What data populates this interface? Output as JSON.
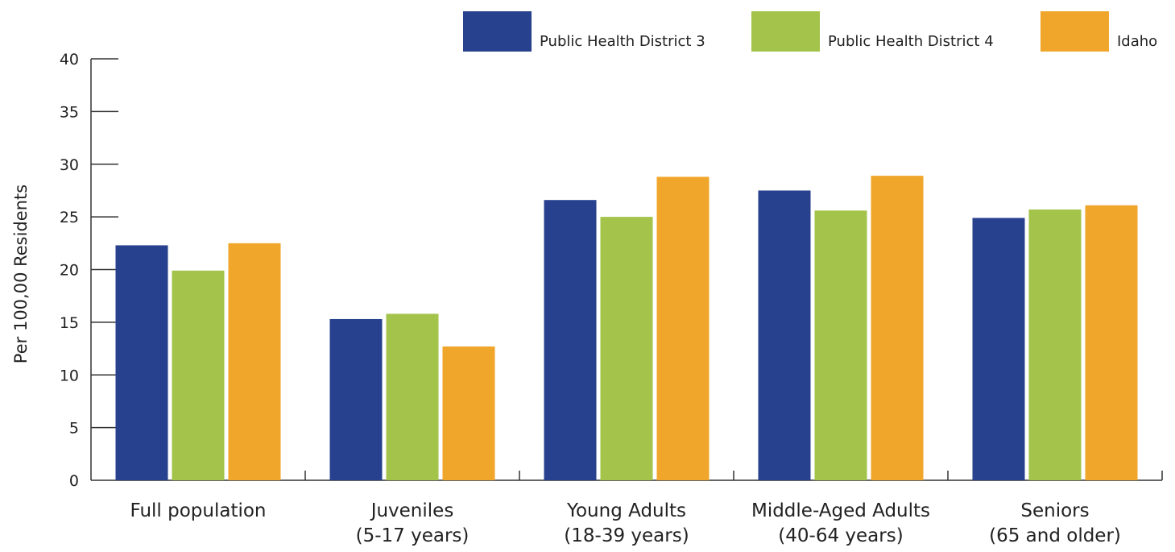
{
  "chart_data": {
    "type": "bar",
    "title": "",
    "xlabel": "",
    "ylabel": "Per 100,00 Residents",
    "ylim": [
      0,
      40
    ],
    "yticks": [
      0,
      5,
      10,
      15,
      20,
      25,
      30,
      35,
      40
    ],
    "grid": false,
    "legend_position": "top-right",
    "categories": [
      [
        "Full population"
      ],
      [
        "Juveniles",
        "(5-17 years)"
      ],
      [
        "Young Adults",
        "(18-39 years)"
      ],
      [
        "Middle-Aged Adults",
        "(40-64 years)"
      ],
      [
        "Seniors",
        "(65 and older)"
      ]
    ],
    "series": [
      {
        "name": "Public Health District 3",
        "color": "#27418e",
        "values": [
          22.3,
          15.3,
          26.6,
          27.5,
          24.9
        ]
      },
      {
        "name": "Public Health District 4",
        "color": "#a3c34a",
        "values": [
          19.9,
          15.8,
          25.0,
          25.6,
          25.7
        ]
      },
      {
        "name": "Idaho",
        "color": "#f0a62a",
        "values": [
          22.5,
          12.7,
          28.8,
          28.9,
          26.1
        ]
      }
    ]
  }
}
